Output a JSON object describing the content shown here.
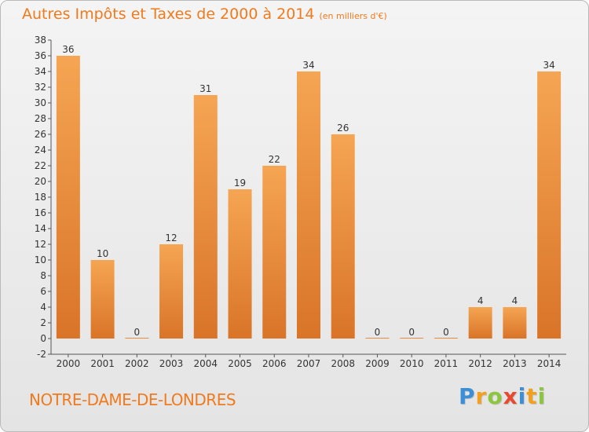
{
  "chart_data": {
    "type": "bar",
    "title": "Autres Impôts et Taxes de 2000 à 2014",
    "subtitle": "(en milliers d'€)",
    "categories": [
      "2000",
      "2001",
      "2002",
      "2003",
      "2004",
      "2005",
      "2006",
      "2007",
      "2008",
      "2009",
      "2010",
      "2011",
      "2012",
      "2013",
      "2014"
    ],
    "values": [
      36,
      10,
      0,
      12,
      31,
      19,
      22,
      34,
      26,
      0,
      0,
      0,
      4,
      4,
      34
    ],
    "ylim": [
      -2,
      38
    ],
    "yticks": [
      -2,
      0,
      2,
      4,
      6,
      8,
      10,
      12,
      14,
      16,
      18,
      20,
      22,
      24,
      26,
      28,
      30,
      32,
      34,
      36,
      38
    ],
    "grid": false,
    "bar_color": "#f29b45",
    "bar_color_dark": "#d97428"
  },
  "commune": "NOTRE-DAME-DE-LONDRES",
  "brand": {
    "letters": [
      "P",
      "r",
      "o",
      "x",
      "i",
      "t",
      "i"
    ],
    "colors": [
      "#3a8fd6",
      "#f2a01e",
      "#8cc63f",
      "#e84a2f",
      "#3a8fd6",
      "#f2a01e",
      "#8cc63f"
    ]
  }
}
